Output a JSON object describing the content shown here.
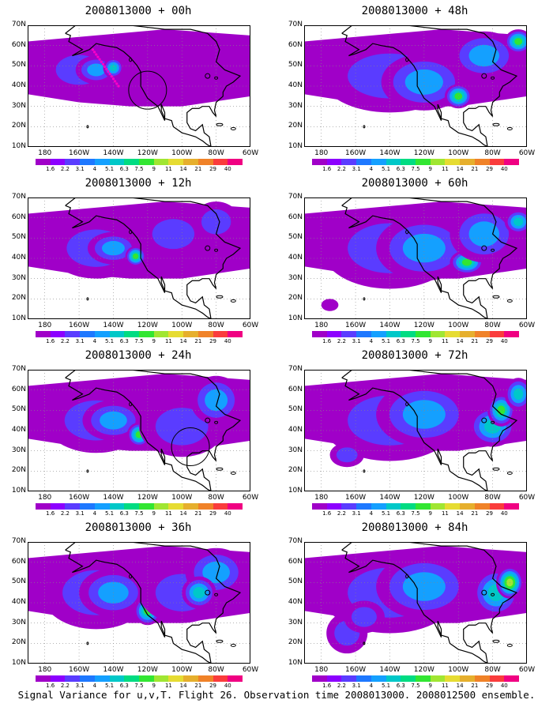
{
  "panels": [
    {
      "title": "2008013000 + 00h",
      "col": 0,
      "row": 0,
      "circle": {
        "lon": -120,
        "lat": 38
      },
      "track": true,
      "blobs": [
        [
          -160,
          48,
          22,
          12,
          1
        ],
        [
          -150,
          48,
          12,
          7,
          2
        ],
        [
          -140,
          49,
          6,
          5,
          3
        ],
        [
          -178,
          42,
          6,
          5,
          0
        ]
      ]
    },
    {
      "title": "2008013000 + 12h",
      "col": 0,
      "row": 1,
      "blobs": [
        [
          -150,
          45,
          28,
          15,
          1
        ],
        [
          -140,
          45,
          15,
          8,
          2
        ],
        [
          -127,
          41,
          6,
          5,
          4
        ],
        [
          -105,
          52,
          20,
          12,
          1
        ],
        [
          -80,
          58,
          14,
          10,
          1
        ]
      ]
    },
    {
      "title": "2008013000 + 24h",
      "col": 0,
      "row": 2,
      "circle": {
        "lon": -95,
        "lat": 32
      },
      "blobs": [
        [
          -150,
          45,
          30,
          16,
          1
        ],
        [
          -140,
          45,
          18,
          10,
          2
        ],
        [
          -125,
          38,
          7,
          6,
          4
        ],
        [
          -100,
          42,
          25,
          15,
          1
        ],
        [
          -80,
          55,
          15,
          12,
          2
        ]
      ]
    },
    {
      "title": "2008013000 + 36h",
      "col": 0,
      "row": 3,
      "blobs": [
        [
          -150,
          45,
          32,
          18,
          1
        ],
        [
          -140,
          45,
          20,
          12,
          2
        ],
        [
          -120,
          36,
          8,
          7,
          4
        ],
        [
          -100,
          45,
          25,
          15,
          1
        ],
        [
          -80,
          55,
          18,
          12,
          2
        ],
        [
          -90,
          45,
          10,
          8,
          3
        ]
      ]
    },
    {
      "title": "2008013000 + 48h",
      "col": 1,
      "row": 0,
      "blobs": [
        [
          -140,
          45,
          40,
          18,
          1
        ],
        [
          -120,
          42,
          25,
          14,
          2
        ],
        [
          -100,
          35,
          8,
          6,
          4
        ],
        [
          -85,
          55,
          20,
          12,
          2
        ],
        [
          -65,
          62,
          8,
          6,
          4
        ]
      ]
    },
    {
      "title": "2008013000 + 60h",
      "col": 1,
      "row": 1,
      "blobs": [
        [
          -140,
          45,
          40,
          20,
          1
        ],
        [
          -120,
          45,
          28,
          16,
          2
        ],
        [
          -95,
          38,
          10,
          6,
          4
        ],
        [
          -85,
          52,
          20,
          14,
          2
        ],
        [
          -65,
          58,
          8,
          6,
          3
        ],
        [
          -175,
          17,
          5,
          3,
          0
        ]
      ]
    },
    {
      "title": "2008013000 + 72h",
      "col": 1,
      "row": 2,
      "blobs": [
        [
          -140,
          45,
          40,
          20,
          1
        ],
        [
          -120,
          48,
          28,
          16,
          2
        ],
        [
          -80,
          42,
          14,
          10,
          3
        ],
        [
          -75,
          50,
          8,
          8,
          4
        ],
        [
          -165,
          28,
          10,
          6,
          1
        ],
        [
          -65,
          58,
          8,
          8,
          3
        ]
      ]
    },
    {
      "title": "2008013000 + 84h",
      "col": 1,
      "row": 3,
      "blobs": [
        [
          -140,
          45,
          40,
          20,
          1
        ],
        [
          -120,
          48,
          28,
          16,
          2
        ],
        [
          -78,
          45,
          14,
          12,
          3
        ],
        [
          -70,
          50,
          8,
          8,
          5
        ],
        [
          -165,
          25,
          12,
          10,
          1
        ],
        [
          -155,
          33,
          12,
          8,
          1
        ]
      ]
    }
  ],
  "lat_labels": [
    "70N",
    "60N",
    "50N",
    "40N",
    "30N",
    "20N",
    "10N"
  ],
  "lon_labels": [
    "180",
    "160W",
    "140W",
    "120W",
    "100W",
    "80W",
    "60W"
  ],
  "colorbar_labels": [
    "1.6",
    "2.2",
    "3.1",
    "4",
    "5.1",
    "6.3",
    "7.5",
    "9",
    "11",
    "14",
    "21",
    "29",
    "40"
  ],
  "colorbar_colors": [
    "#a000c8",
    "#8c00ff",
    "#5a3cff",
    "#1e78ff",
    "#14a0ff",
    "#00c8c8",
    "#00dc82",
    "#32e632",
    "#a0e632",
    "#e6dc32",
    "#e6af2d",
    "#f08228",
    "#fa3c3c",
    "#f00082"
  ],
  "footer": "Signal Variance for u,v,T. Flight 26. Observation time 2008013000. 2008012500 ensemble."
}
